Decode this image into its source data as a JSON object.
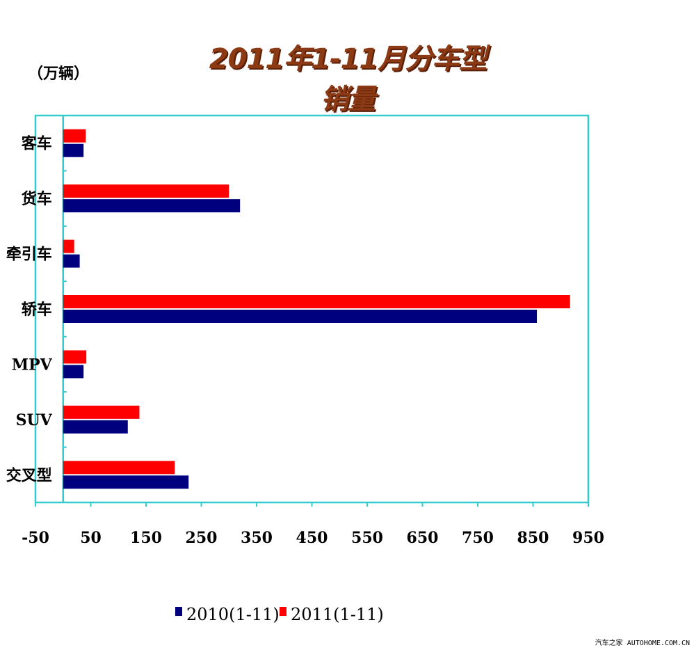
{
  "title": "2011年1-11月分车型销量",
  "unit_label": "（万辆）",
  "watermark": "汽车之家 AUTOHOME.COM.CN",
  "chart_data": {
    "type": "bar",
    "orientation": "horizontal",
    "categories": [
      "客车",
      "货车",
      "牵引车",
      "轿车",
      "MPV",
      "SUV",
      "交叉型"
    ],
    "series": [
      {
        "name": "2010(1-11)",
        "color": "#00007f",
        "values": [
          37,
          320,
          30,
          857,
          37,
          117,
          227
        ]
      },
      {
        "name": "2011(1-11)",
        "color": "#ff0000",
        "values": [
          41,
          300,
          20,
          917,
          42,
          138,
          202
        ]
      }
    ],
    "xlim": [
      -50,
      950
    ],
    "xticks": [
      -50,
      50,
      150,
      250,
      350,
      450,
      550,
      650,
      750,
      850,
      950
    ],
    "xtick_labels": [
      "-50",
      "50",
      "150",
      "250",
      "350",
      "450",
      "550",
      "650",
      "750",
      "850",
      "950"
    ],
    "legend_position": "bottom",
    "plot_border_color": "#33cccc"
  }
}
